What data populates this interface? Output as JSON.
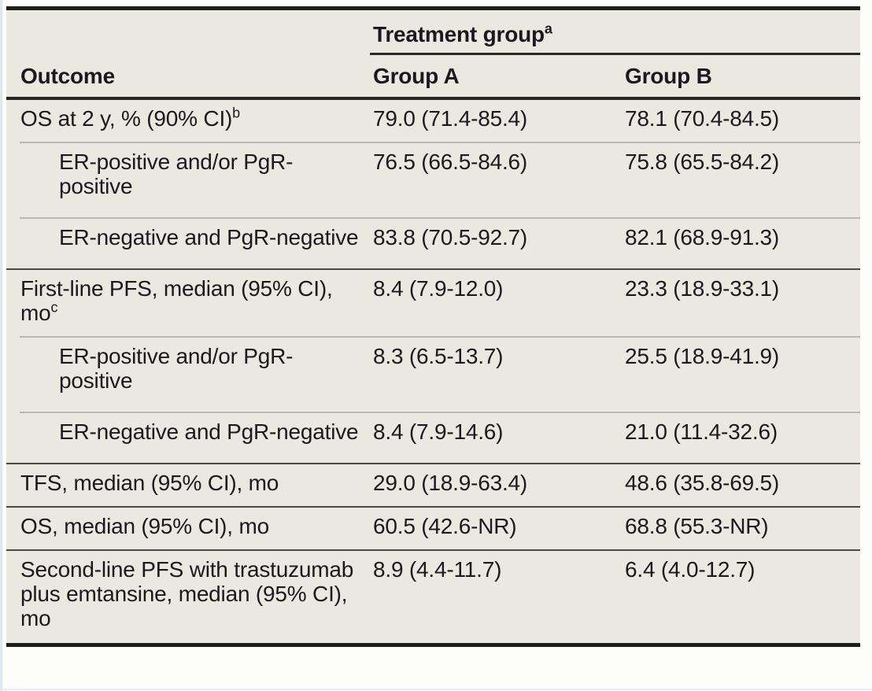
{
  "table": {
    "group_header": {
      "label": "Treatment group",
      "sup": "a"
    },
    "columns": [
      "Outcome",
      "Group A",
      "Group B"
    ],
    "rows": [
      {
        "label": "OS at 2 y, % (90% CI)",
        "sup": "b",
        "indent": false,
        "group_a": "79.0 (71.4-85.4)",
        "group_b": "78.1 (70.4-84.5)"
      },
      {
        "label": "ER-positive and/or PgR-positive",
        "indent": true,
        "group_a": "76.5 (66.5-84.6)",
        "group_b": "75.8 (65.5-84.2)"
      },
      {
        "label": "ER-negative and PgR-negative",
        "indent": true,
        "group_a": "83.8 (70.5-92.7)",
        "group_b": "82.1 (68.9-91.3)"
      },
      {
        "label": "First-line PFS, median (95% CI), mo",
        "sup": "c",
        "indent": false,
        "group_a": "8.4 (7.9-12.0)",
        "group_b": "23.3 (18.9-33.1)"
      },
      {
        "label": "ER-positive and/or PgR-positive",
        "indent": true,
        "group_a": "8.3 (6.5-13.7)",
        "group_b": "25.5 (18.9-41.9)"
      },
      {
        "label": "ER-negative and PgR-negative",
        "indent": true,
        "group_a": "8.4 (7.9-14.6)",
        "group_b": "21.0 (11.4-32.6)"
      },
      {
        "label": "TFS, median (95% CI), mo",
        "indent": false,
        "group_a": "29.0 (18.9-63.4)",
        "group_b": "48.6 (35.8-69.5)"
      },
      {
        "label": "OS, median (95% CI), mo",
        "indent": false,
        "group_a": "60.5 (42.6-NR)",
        "group_b": "68.8 (55.3-NR)"
      },
      {
        "label": "Second-line PFS with trastuzumab plus emtansine, median (95% CI), mo",
        "indent": false,
        "group_a": "8.9 (4.4-11.7)",
        "group_b": "6.4 (4.0-12.7)"
      }
    ]
  },
  "colors": {
    "table_background": "#eae8df",
    "page_background": "#fdfdfc",
    "heavy_rule": "#1d1d1d",
    "header_rule": "#262626",
    "section_rule": "#4a4946",
    "sub_rule": "#b9b7ae",
    "text": "#1a1922",
    "edge_tint": "#dfe7ee"
  }
}
